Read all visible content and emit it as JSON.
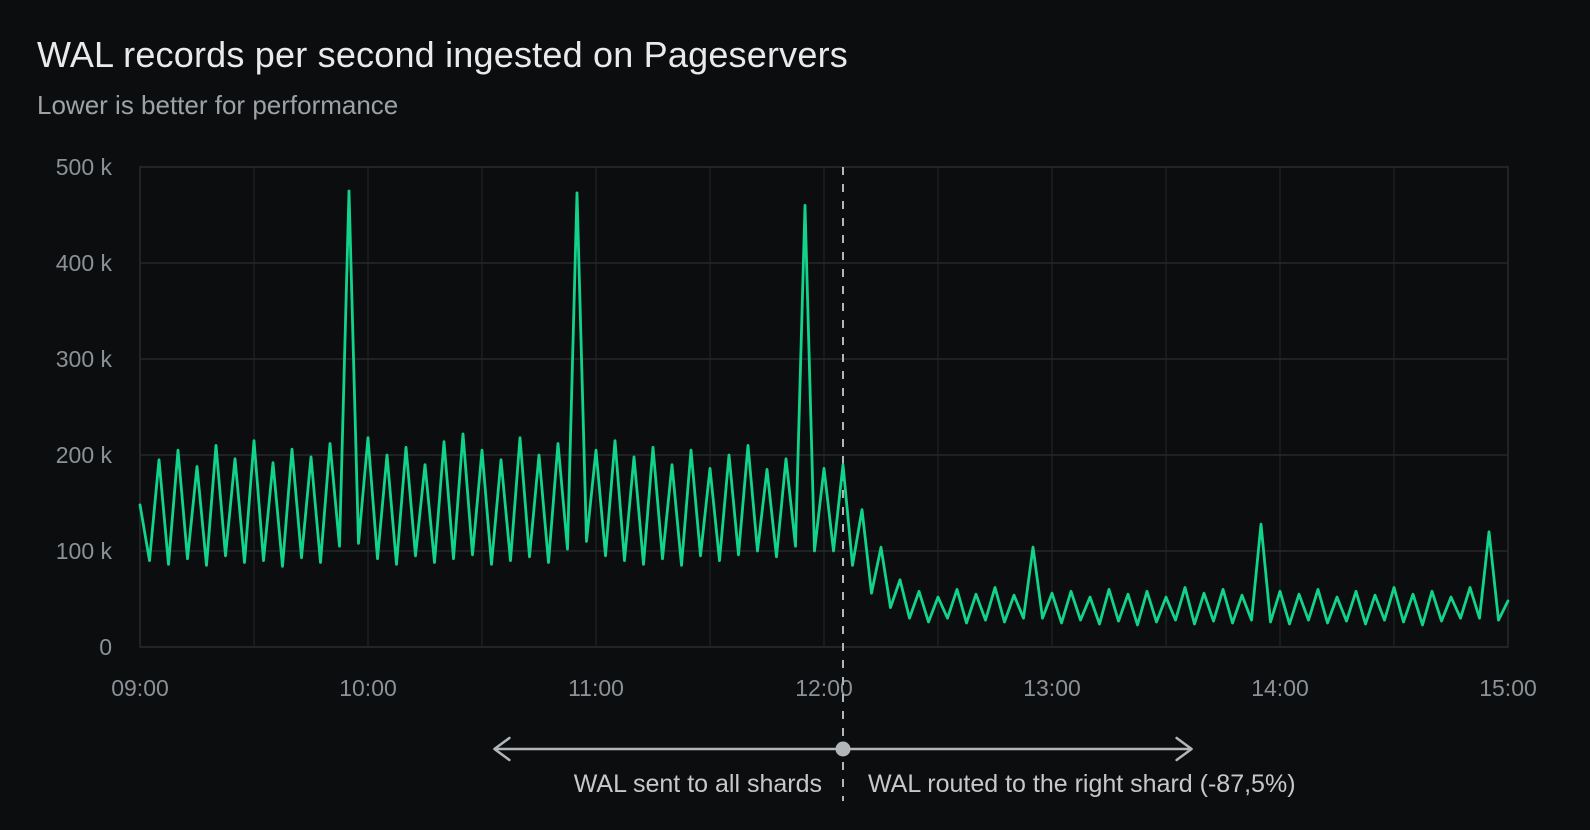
{
  "chart_data": {
    "type": "line",
    "title": "WAL records per second ingested on Pageservers",
    "subtitle": "Lower is better for performance",
    "x_axis": {
      "tick_labels": [
        "09:00",
        "10:00",
        "11:00",
        "12:00",
        "13:00",
        "14:00",
        "15:00"
      ],
      "tick_minutes": [
        0,
        60,
        120,
        180,
        240,
        300,
        360
      ],
      "gridline_interval_minutes": 30,
      "range_minutes": [
        0,
        360
      ]
    },
    "y_axis": {
      "tick_labels": [
        "0",
        "100 k",
        "200 k",
        "300 k",
        "400 k",
        "500 k"
      ],
      "tick_values_k": [
        0,
        100,
        200,
        300,
        400,
        500
      ],
      "range_k": [
        0,
        500
      ],
      "grid": true
    },
    "series": [
      {
        "name": "wal-records-per-second",
        "color": "#12d38a",
        "points_minutes_valueK": [
          [
            0,
            148
          ],
          [
            2.5,
            90
          ],
          [
            5,
            195
          ],
          [
            7.5,
            86
          ],
          [
            10,
            205
          ],
          [
            12.5,
            92
          ],
          [
            15,
            188
          ],
          [
            17.5,
            85
          ],
          [
            20,
            210
          ],
          [
            22.5,
            95
          ],
          [
            25,
            196
          ],
          [
            27.5,
            88
          ],
          [
            30,
            215
          ],
          [
            32.5,
            90
          ],
          [
            35,
            192
          ],
          [
            37.5,
            84
          ],
          [
            40,
            206
          ],
          [
            42.5,
            93
          ],
          [
            45,
            198
          ],
          [
            47.5,
            88
          ],
          [
            50,
            212
          ],
          [
            52.5,
            105
          ],
          [
            55,
            475
          ],
          [
            57.5,
            108
          ],
          [
            60,
            218
          ],
          [
            62.5,
            92
          ],
          [
            65,
            200
          ],
          [
            67.5,
            86
          ],
          [
            70,
            208
          ],
          [
            72.5,
            95
          ],
          [
            75,
            190
          ],
          [
            77.5,
            88
          ],
          [
            80,
            214
          ],
          [
            82.5,
            92
          ],
          [
            85,
            222
          ],
          [
            87.5,
            96
          ],
          [
            90,
            205
          ],
          [
            92.5,
            86
          ],
          [
            95,
            195
          ],
          [
            97.5,
            90
          ],
          [
            100,
            218
          ],
          [
            102.5,
            94
          ],
          [
            105,
            200
          ],
          [
            107.5,
            88
          ],
          [
            110,
            212
          ],
          [
            112.5,
            102
          ],
          [
            115,
            473
          ],
          [
            117.5,
            110
          ],
          [
            120,
            205
          ],
          [
            122.5,
            95
          ],
          [
            125,
            215
          ],
          [
            127.5,
            90
          ],
          [
            130,
            198
          ],
          [
            132.5,
            86
          ],
          [
            135,
            208
          ],
          [
            137.5,
            92
          ],
          [
            140,
            190
          ],
          [
            142.5,
            85
          ],
          [
            145,
            205
          ],
          [
            147.5,
            95
          ],
          [
            150,
            186
          ],
          [
            152.5,
            90
          ],
          [
            155,
            200
          ],
          [
            157.5,
            96
          ],
          [
            160,
            210
          ],
          [
            162.5,
            100
          ],
          [
            165,
            185
          ],
          [
            167.5,
            94
          ],
          [
            170,
            196
          ],
          [
            172.5,
            105
          ],
          [
            175,
            460
          ],
          [
            177.5,
            100
          ],
          [
            180,
            186
          ],
          [
            182.5,
            100
          ],
          [
            185,
            190
          ],
          [
            187.5,
            85
          ],
          [
            190,
            143
          ],
          [
            192.5,
            56
          ],
          [
            195,
            104
          ],
          [
            197.5,
            41
          ],
          [
            200,
            70
          ],
          [
            202.5,
            30
          ],
          [
            205,
            58
          ],
          [
            207.5,
            26
          ],
          [
            210,
            52
          ],
          [
            212.5,
            30
          ],
          [
            215,
            60
          ],
          [
            217.5,
            25
          ],
          [
            220,
            55
          ],
          [
            222.5,
            28
          ],
          [
            225,
            62
          ],
          [
            227.5,
            26
          ],
          [
            230,
            54
          ],
          [
            232.5,
            30
          ],
          [
            235,
            104
          ],
          [
            237.5,
            30
          ],
          [
            240,
            56
          ],
          [
            242.5,
            25
          ],
          [
            245,
            58
          ],
          [
            247.5,
            28
          ],
          [
            250,
            52
          ],
          [
            252.5,
            24
          ],
          [
            255,
            60
          ],
          [
            257.5,
            27
          ],
          [
            260,
            55
          ],
          [
            262.5,
            23
          ],
          [
            265,
            58
          ],
          [
            267.5,
            26
          ],
          [
            270,
            52
          ],
          [
            272.5,
            28
          ],
          [
            275,
            62
          ],
          [
            277.5,
            24
          ],
          [
            280,
            56
          ],
          [
            282.5,
            27
          ],
          [
            285,
            60
          ],
          [
            287.5,
            25
          ],
          [
            290,
            54
          ],
          [
            292.5,
            28
          ],
          [
            295,
            128
          ],
          [
            297.5,
            26
          ],
          [
            300,
            58
          ],
          [
            302.5,
            24
          ],
          [
            305,
            55
          ],
          [
            307.5,
            28
          ],
          [
            310,
            60
          ],
          [
            312.5,
            25
          ],
          [
            315,
            52
          ],
          [
            317.5,
            27
          ],
          [
            320,
            58
          ],
          [
            322.5,
            24
          ],
          [
            325,
            54
          ],
          [
            327.5,
            28
          ],
          [
            330,
            62
          ],
          [
            332.5,
            26
          ],
          [
            335,
            55
          ],
          [
            337.5,
            23
          ],
          [
            340,
            58
          ],
          [
            342.5,
            27
          ],
          [
            345,
            52
          ],
          [
            347.5,
            30
          ],
          [
            350,
            62
          ],
          [
            352.5,
            30
          ],
          [
            355,
            120
          ],
          [
            357.5,
            28
          ],
          [
            360,
            48
          ]
        ]
      }
    ],
    "annotations": {
      "marker_minutes": 185,
      "arrow_start_minutes": 93,
      "arrow_end_minutes": 277,
      "left_label": "WAL sent to all shards",
      "right_label": "WAL routed to the right shard (-87,5%)"
    },
    "spikes_note": {
      "pre_noon_spikes_k": [
        [
          55,
          475
        ],
        [
          115,
          473
        ],
        [
          175,
          460
        ]
      ],
      "post_noon_spikes_k": [
        [
          235,
          104
        ],
        [
          295,
          128
        ],
        [
          355,
          120
        ]
      ]
    },
    "colors": {
      "background": "#0c0d0e",
      "line": "#12d38a",
      "grid_major": "#26282b",
      "grid_minor": "#1c1e21",
      "axis_text": "#8b9196",
      "title_text": "#e8eaeb",
      "subtitle_text": "#9da2a7",
      "annotation_text": "#c6c9cc",
      "marker": "#b2b6b9"
    },
    "legend": "none"
  }
}
